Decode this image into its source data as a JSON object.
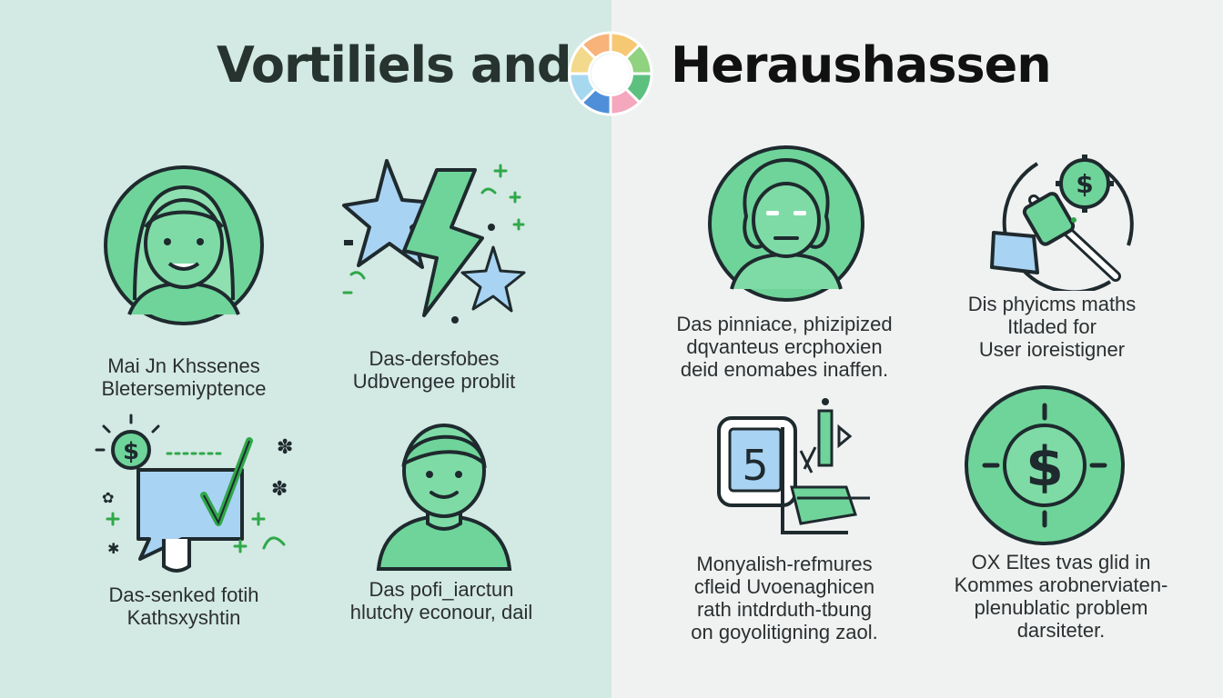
{
  "header": {
    "title_left": "Vortiliels and",
    "title_right": "Heraushassen"
  },
  "left_items": [
    {
      "lines": [
        "Mai Jn Khssenes",
        "Bletersemiyptence"
      ],
      "icon": "smiling-woman-icon"
    },
    {
      "lines": [
        "Das-dersfobes",
        "Udbvengee problit"
      ],
      "icon": "lightning-stars-icon"
    },
    {
      "lines": [
        "Das-senked fotih",
        "Kathsxyshtin"
      ],
      "icon": "dollar-chat-checkmark-icon"
    },
    {
      "lines": [
        "Das pofi_iarctun",
        "hlutchy econour, dail"
      ],
      "icon": "smiling-person-icon"
    }
  ],
  "right_items": [
    {
      "lines": [
        "Das pinniace, phizipized",
        "dqvanteus ercphoxien",
        "deid enomabes inaffen."
      ],
      "icon": "frustrated-person-icon"
    },
    {
      "lines": [
        "Dis phyicms maths",
        "Itladed for",
        "User ioreistigner"
      ],
      "icon": "broken-dollar-gear-icon"
    },
    {
      "lines": [
        "Monyalish-refmures",
        "cfleid Uvoenaghicen",
        "rath intdrduth-tbung",
        "on goyolitigning zaol."
      ],
      "icon": "number-five-device-icon",
      "number": "5"
    },
    {
      "lines": [
        "OX Eltes tvas glid in",
        "Kommes arobnerviaten-",
        "plenublatic problem",
        "darsiteter."
      ],
      "icon": "dollar-coin-icon"
    }
  ],
  "colors": {
    "left_bg": "#d3e9e3",
    "right_bg": "#f0f2f1",
    "green": "#6fd49a",
    "blue": "#a9d3f2",
    "ink": "#1e2a2e",
    "accent_green": "#2fa84a"
  }
}
